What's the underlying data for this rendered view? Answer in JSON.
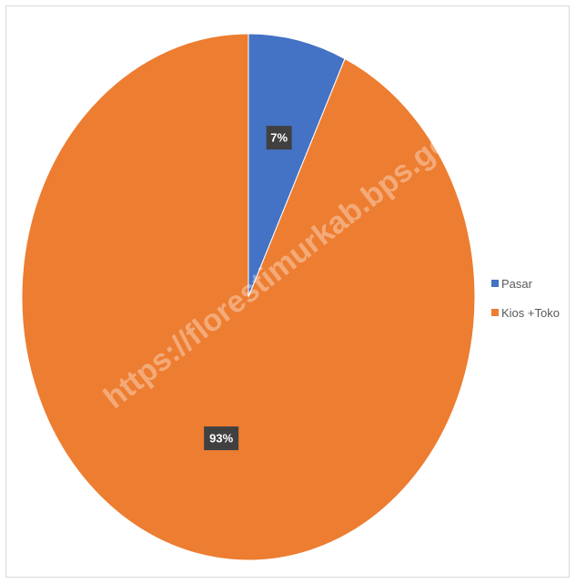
{
  "chart_data": {
    "type": "pie",
    "title": "",
    "categories": [
      "Pasar",
      "Kios +Toko"
    ],
    "values": [
      7,
      93
    ],
    "data_labels": [
      "7%",
      "93%"
    ],
    "colors": [
      "#4472c4",
      "#ed7d31"
    ],
    "legend_position": "right",
    "label_background": "#404040",
    "watermark_text": "https://florestimurkab.bps.go.id"
  }
}
